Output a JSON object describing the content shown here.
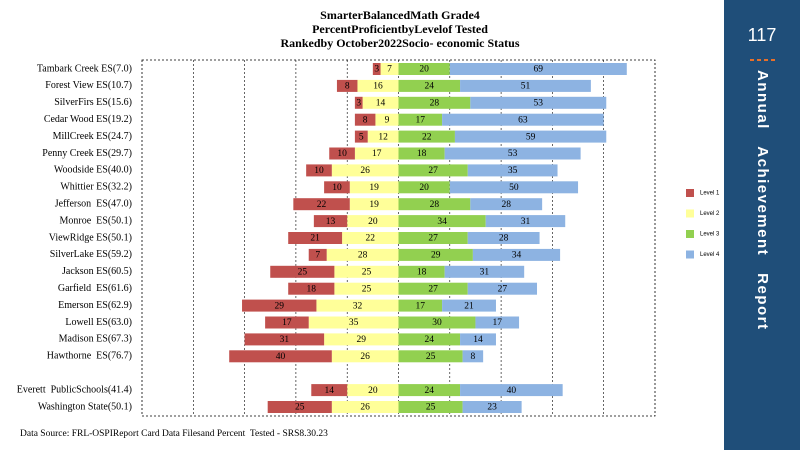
{
  "chart_data": {
    "type": "diverging-bar",
    "title": [
      "SmarterBalancedMath Grade4",
      "PercentProficientbyLevelof Tested",
      "Rankedby October2022Socio- economic Status"
    ],
    "categories": [
      "Tambark Creek ES(7.0)",
      "Forest View ES(10.7)",
      "SilverFirs ES(15.6)",
      "Cedar Wood ES(19.2)",
      "MillCreek ES(24.7)",
      "Penny Creek ES(29.7)",
      "Woodside ES(40.0)",
      "Whittier ES(32.2)",
      "Jefferson  ES(47.0)",
      "Monroe  ES(50.1)",
      "ViewRidge ES(50.1)",
      "SilverLake ES(59.2)",
      "Jackson ES(60.5)",
      "Garfield  ES(61.6)",
      "Emerson ES(62.9)",
      "Lowell ES(63.0)",
      "Madison ES(67.3)",
      "Hawthorne  ES(76.7)",
      null,
      "Everett  PublicSchools(41.4)",
      "Washington State(50.1)"
    ],
    "series": [
      {
        "name": "Level 1",
        "color": "#c0504d",
        "side": "left",
        "values": [
          3,
          8,
          3,
          8,
          5,
          10,
          10,
          10,
          22,
          13,
          21,
          7,
          25,
          18,
          29,
          17,
          31,
          40,
          null,
          14,
          25
        ]
      },
      {
        "name": "Level 2",
        "color": "#ffff99",
        "side": "left",
        "values": [
          7,
          16,
          14,
          9,
          12,
          17,
          26,
          19,
          19,
          20,
          22,
          28,
          25,
          25,
          32,
          35,
          29,
          26,
          null,
          20,
          26
        ]
      },
      {
        "name": "Level 3",
        "color": "#92d050",
        "side": "right",
        "values": [
          20,
          24,
          28,
          17,
          22,
          18,
          27,
          20,
          28,
          34,
          27,
          29,
          18,
          27,
          17,
          30,
          24,
          25,
          null,
          24,
          25
        ]
      },
      {
        "name": "Level 4",
        "color": "#8db3e2",
        "side": "right",
        "values": [
          69,
          51,
          53,
          63,
          59,
          53,
          35,
          50,
          28,
          31,
          28,
          34,
          31,
          27,
          21,
          17,
          14,
          8,
          null,
          40,
          23
        ]
      }
    ],
    "xlim": [
      -100,
      100
    ],
    "xticks": [
      -80,
      -60,
      -40,
      -20,
      0,
      20,
      40,
      60,
      80
    ],
    "grid": true,
    "legend": "right",
    "source": "Data Source: FRL-OSPIReport Card Data Filesand Percent  Tested - SRS8.30.23"
  },
  "side_panel": {
    "page": "117",
    "text": "Annual   Achievement   Report"
  }
}
